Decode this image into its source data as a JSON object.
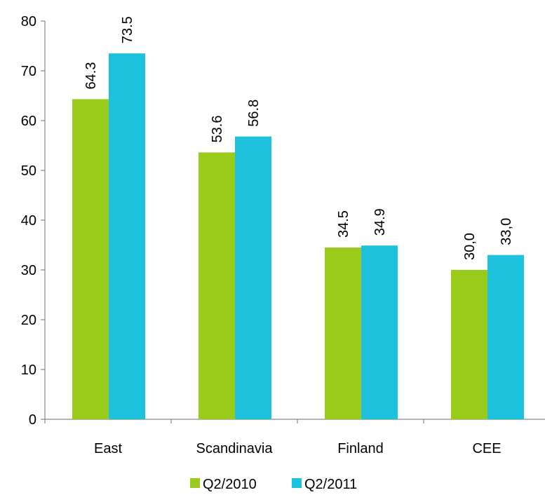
{
  "chart_data": {
    "type": "bar",
    "categories": [
      "East",
      "Scandinavia",
      "Finland",
      "CEE"
    ],
    "series": [
      {
        "name": "Q2/2010",
        "color": "#99cc1a",
        "values": [
          64.3,
          53.6,
          34.5,
          30.0
        ],
        "labels": [
          "64.3",
          "53.6",
          "34.5",
          "30,0"
        ]
      },
      {
        "name": "Q2/2011",
        "color": "#1fc2dd",
        "values": [
          73.5,
          56.8,
          34.9,
          33.0
        ],
        "labels": [
          "73.5",
          "56.8",
          "34.9",
          "33,0"
        ]
      }
    ],
    "ylim": [
      0,
      80
    ],
    "yticks": [
      "0",
      "10",
      "20",
      "30",
      "40",
      "50",
      "60",
      "70",
      "80"
    ],
    "grid": false,
    "legend_position": "bottom",
    "title": "",
    "xlabel": "",
    "ylabel": ""
  }
}
